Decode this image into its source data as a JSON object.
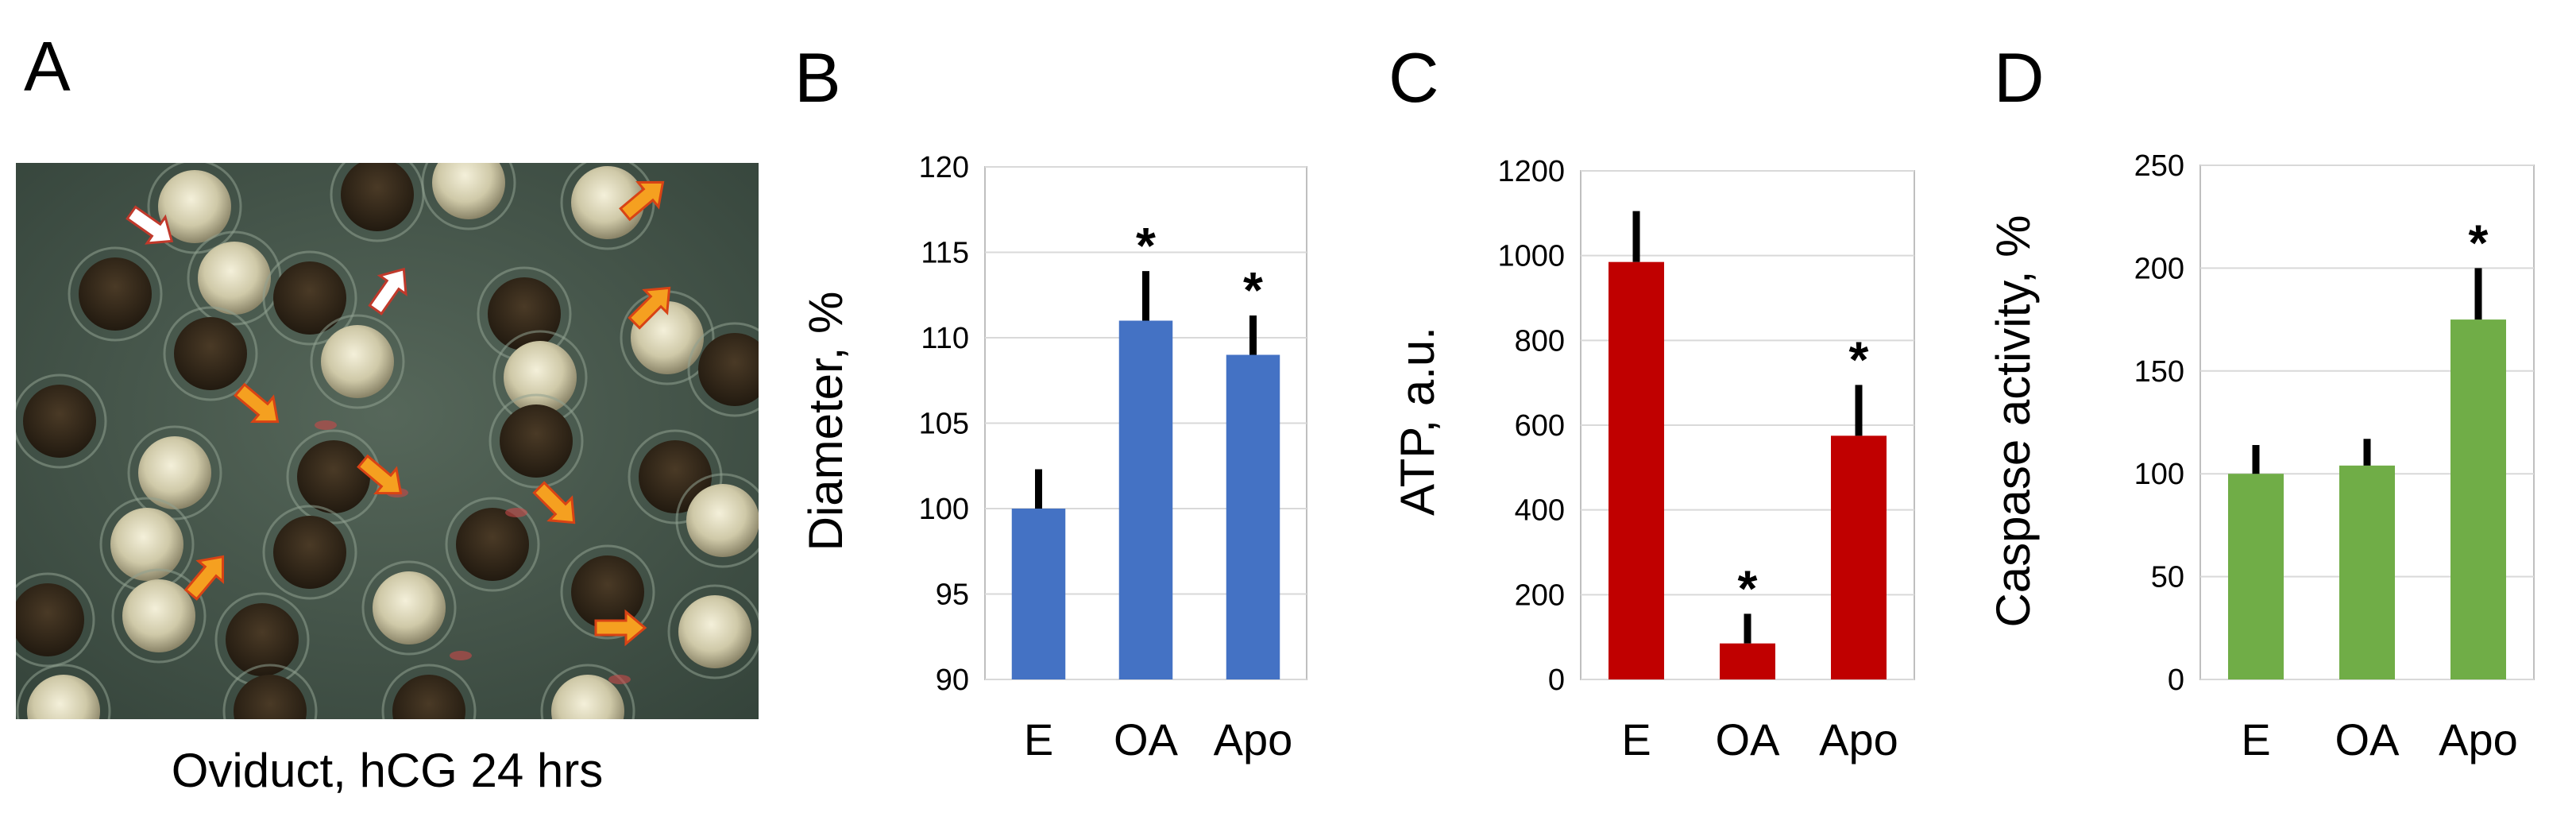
{
  "panel_a": {
    "letter": "A",
    "caption": "Oviduct, hCG 24 hrs",
    "colors": {
      "background": "#46584a",
      "white_arrow": "#ffffff",
      "orange_arrow": "#f5a020"
    }
  },
  "chart_data": [
    {
      "panel": "B",
      "type": "bar",
      "categories": [
        "E",
        "OA",
        "Apo"
      ],
      "values": [
        100,
        111,
        109
      ],
      "errors": [
        2.3,
        2.9,
        2.3
      ],
      "significant": [
        false,
        true,
        true
      ],
      "significance_mark": "*",
      "ylabel": "Diameter, %",
      "ylim": [
        90,
        120
      ],
      "yticks": [
        90,
        95,
        100,
        105,
        110,
        115,
        120
      ],
      "grid": true,
      "color": "#4472c4"
    },
    {
      "panel": "C",
      "type": "bar",
      "categories": [
        "E",
        "OA",
        "Apo"
      ],
      "values": [
        985,
        85,
        575
      ],
      "errors": [
        120,
        70,
        120
      ],
      "significant": [
        false,
        true,
        true
      ],
      "significance_mark": "*",
      "ylabel": "ATP, a.u.",
      "ylim": [
        0,
        1200
      ],
      "yticks": [
        0,
        200,
        400,
        600,
        800,
        1000,
        1200
      ],
      "grid": true,
      "color": "#c00000"
    },
    {
      "panel": "D",
      "type": "bar",
      "categories": [
        "E",
        "OA",
        "Apo"
      ],
      "values": [
        100,
        104,
        175
      ],
      "errors": [
        14,
        13,
        25
      ],
      "significant": [
        false,
        false,
        true
      ],
      "significance_mark": "*",
      "ylabel": "Caspase activity, %",
      "ylim": [
        0,
        250
      ],
      "yticks": [
        0,
        50,
        100,
        150,
        200,
        250
      ],
      "grid": true,
      "color": "#70ad47"
    }
  ]
}
